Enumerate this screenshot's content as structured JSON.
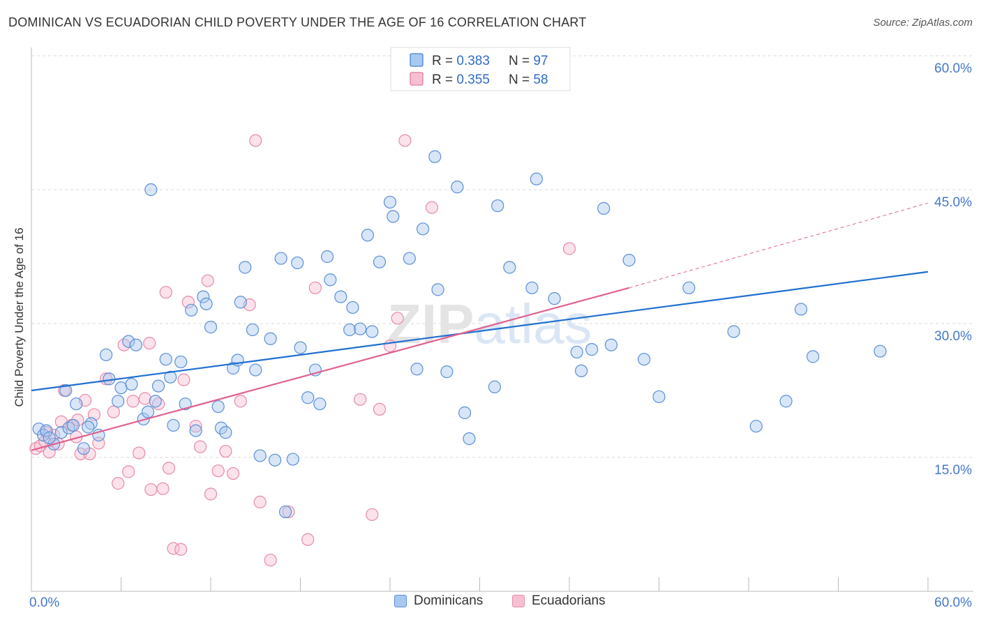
{
  "title": "DOMINICAN VS ECUADORIAN CHILD POVERTY UNDER THE AGE OF 16 CORRELATION CHART",
  "source": "Source: ZipAtlas.com",
  "watermark": "ZIPatlas",
  "colors": {
    "blue": "#5b8fd6",
    "blue_fill": "#a9c8f0",
    "blue_line": "#1f6fd0",
    "pink": "#e68aa8",
    "pink_fill": "#f7bfd2",
    "pink_line": "#e0608e",
    "axis_text": "#4477cc",
    "grid": "#d8d8d8"
  },
  "legend_top": {
    "rows": [
      {
        "r_label": "R = ",
        "r_value": "0.383",
        "n_label": "N = ",
        "n_value": "97"
      },
      {
        "r_label": "R = ",
        "r_value": "0.355",
        "n_label": "N = ",
        "n_value": "58"
      }
    ]
  },
  "legend_bottom": [
    "Dominicans",
    "Ecuadorians"
  ],
  "chart_data": {
    "type": "scatter",
    "title": "DOMINICAN VS ECUADORIAN CHILD POVERTY UNDER THE AGE OF 16 CORRELATION CHART",
    "xlabel": "",
    "ylabel": "Child Poverty Under the Age of 16",
    "xlim": [
      0,
      60
    ],
    "ylim": [
      0,
      60
    ],
    "x_tick_labels": [
      "0.0%",
      "60.0%"
    ],
    "y_ticks": [
      15,
      30,
      45,
      60
    ],
    "y_tick_labels": [
      "15.0%",
      "30.0%",
      "45.0%",
      "60.0%"
    ],
    "grid": true,
    "legend_position": "top-center",
    "series": [
      {
        "name": "Dominicans",
        "color": "#5b8fd6",
        "R": 0.383,
        "N": 97,
        "trend": {
          "x": [
            0,
            60
          ],
          "y": [
            22.5,
            35.8
          ],
          "dashed_from": null
        },
        "points": [
          [
            0.5,
            18.2
          ],
          [
            0.8,
            17.5
          ],
          [
            1.0,
            18.0
          ],
          [
            1.5,
            16.5
          ],
          [
            2.0,
            17.8
          ],
          [
            2.3,
            22.5
          ],
          [
            2.5,
            18.3
          ],
          [
            2.8,
            18.6
          ],
          [
            3.0,
            21.0
          ],
          [
            3.5,
            16.0
          ],
          [
            4.0,
            18.8
          ],
          [
            4.5,
            17.5
          ],
          [
            5.0,
            26.5
          ],
          [
            5.2,
            23.8
          ],
          [
            5.8,
            21.3
          ],
          [
            6.0,
            22.8
          ],
          [
            6.5,
            28.0
          ],
          [
            6.7,
            23.2
          ],
          [
            7.0,
            27.6
          ],
          [
            7.5,
            19.3
          ],
          [
            7.8,
            20.1
          ],
          [
            8.0,
            45.0
          ],
          [
            8.3,
            21.3
          ],
          [
            8.5,
            23.0
          ],
          [
            9.0,
            26.0
          ],
          [
            9.3,
            24.0
          ],
          [
            9.5,
            18.6
          ],
          [
            10.0,
            25.7
          ],
          [
            10.3,
            21.0
          ],
          [
            10.7,
            31.5
          ],
          [
            11.0,
            18.0
          ],
          [
            11.5,
            33.0
          ],
          [
            11.7,
            32.2
          ],
          [
            12.0,
            29.6
          ],
          [
            12.5,
            20.7
          ],
          [
            12.7,
            18.3
          ],
          [
            13.0,
            17.8
          ],
          [
            13.5,
            25.0
          ],
          [
            13.8,
            25.9
          ],
          [
            14.0,
            32.4
          ],
          [
            14.3,
            36.3
          ],
          [
            14.8,
            29.3
          ],
          [
            15.0,
            24.8
          ],
          [
            15.3,
            15.2
          ],
          [
            16.0,
            28.3
          ],
          [
            16.3,
            14.7
          ],
          [
            16.7,
            37.3
          ],
          [
            17.0,
            8.9
          ],
          [
            17.5,
            14.8
          ],
          [
            17.8,
            36.8
          ],
          [
            18.0,
            27.3
          ],
          [
            18.5,
            21.7
          ],
          [
            19.0,
            24.8
          ],
          [
            19.3,
            21.0
          ],
          [
            19.8,
            37.5
          ],
          [
            20.0,
            34.9
          ],
          [
            20.7,
            33.0
          ],
          [
            21.3,
            29.3
          ],
          [
            21.5,
            31.8
          ],
          [
            22.0,
            29.4
          ],
          [
            22.5,
            39.9
          ],
          [
            22.8,
            29.1
          ],
          [
            23.3,
            36.9
          ],
          [
            24.0,
            43.6
          ],
          [
            24.2,
            42.0
          ],
          [
            25.3,
            37.3
          ],
          [
            25.8,
            24.9
          ],
          [
            26.2,
            40.6
          ],
          [
            27.0,
            48.7
          ],
          [
            27.2,
            33.8
          ],
          [
            27.8,
            24.6
          ],
          [
            28.5,
            45.3
          ],
          [
            29.0,
            20.0
          ],
          [
            29.3,
            17.1
          ],
          [
            31.0,
            22.9
          ],
          [
            31.2,
            43.2
          ],
          [
            32.0,
            36.3
          ],
          [
            33.5,
            34.0
          ],
          [
            33.8,
            46.2
          ],
          [
            35.0,
            32.8
          ],
          [
            36.5,
            26.8
          ],
          [
            36.8,
            24.7
          ],
          [
            37.5,
            27.1
          ],
          [
            38.3,
            42.9
          ],
          [
            38.8,
            27.6
          ],
          [
            40.0,
            37.1
          ],
          [
            41.0,
            26.0
          ],
          [
            42.0,
            21.8
          ],
          [
            44.0,
            34.0
          ],
          [
            47.0,
            29.1
          ],
          [
            48.5,
            18.5
          ],
          [
            50.5,
            21.3
          ],
          [
            51.5,
            31.6
          ],
          [
            52.3,
            26.3
          ],
          [
            56.8,
            26.9
          ],
          [
            1.2,
            17.2
          ],
          [
            3.8,
            18.4
          ]
        ]
      },
      {
        "name": "Ecuadorians",
        "color": "#e68aa8",
        "R": 0.355,
        "N": 58,
        "trend": {
          "x": [
            0,
            40
          ],
          "y": [
            15.8,
            34.0
          ],
          "dashed_to": [
            60,
            43.5
          ]
        },
        "points": [
          [
            0.3,
            16.0
          ],
          [
            0.6,
            16.3
          ],
          [
            0.9,
            16.8
          ],
          [
            1.2,
            15.6
          ],
          [
            1.5,
            17.5
          ],
          [
            1.8,
            16.5
          ],
          [
            2.0,
            19.0
          ],
          [
            2.2,
            22.5
          ],
          [
            2.7,
            18.6
          ],
          [
            3.0,
            17.3
          ],
          [
            3.3,
            15.4
          ],
          [
            3.6,
            21.4
          ],
          [
            3.9,
            15.4
          ],
          [
            4.2,
            19.8
          ],
          [
            4.5,
            16.6
          ],
          [
            5.0,
            23.8
          ],
          [
            5.5,
            20.1
          ],
          [
            5.8,
            12.1
          ],
          [
            6.2,
            27.6
          ],
          [
            6.5,
            13.4
          ],
          [
            6.8,
            21.3
          ],
          [
            7.2,
            15.5
          ],
          [
            7.6,
            21.6
          ],
          [
            7.9,
            27.8
          ],
          [
            8.0,
            11.4
          ],
          [
            8.5,
            21.0
          ],
          [
            8.8,
            11.5
          ],
          [
            9.0,
            33.5
          ],
          [
            9.2,
            13.8
          ],
          [
            9.5,
            4.8
          ],
          [
            10.0,
            4.7
          ],
          [
            10.2,
            23.7
          ],
          [
            10.5,
            32.4
          ],
          [
            11.0,
            18.5
          ],
          [
            11.3,
            16.2
          ],
          [
            11.8,
            34.8
          ],
          [
            12.0,
            10.9
          ],
          [
            12.5,
            13.5
          ],
          [
            13.0,
            15.7
          ],
          [
            13.5,
            13.2
          ],
          [
            14.0,
            21.3
          ],
          [
            14.6,
            32.1
          ],
          [
            15.0,
            50.5
          ],
          [
            15.3,
            10.0
          ],
          [
            16.0,
            3.5
          ],
          [
            17.2,
            8.9
          ],
          [
            18.5,
            5.8
          ],
          [
            19.0,
            34.0
          ],
          [
            22.0,
            21.5
          ],
          [
            22.8,
            8.6
          ],
          [
            23.3,
            20.4
          ],
          [
            24.0,
            27.5
          ],
          [
            24.5,
            30.6
          ],
          [
            25.0,
            50.5
          ],
          [
            26.8,
            43.0
          ],
          [
            36.0,
            38.4
          ],
          [
            3.1,
            19.2
          ],
          [
            1.0,
            17.8
          ]
        ]
      }
    ]
  }
}
